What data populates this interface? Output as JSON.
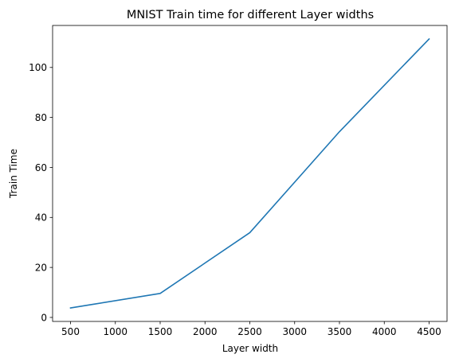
{
  "chart_data": {
    "type": "line",
    "title": "MNIST Train time for different Layer widths",
    "xlabel": "Layer width",
    "ylabel": "Train Time",
    "x": [
      500,
      1500,
      2500,
      3500,
      4500
    ],
    "series": [
      {
        "values": [
          3.8,
          9.6,
          33.9,
          74.3,
          111.4
        ],
        "color": "#1f77b4"
      }
    ],
    "xticks": [
      500,
      1000,
      1500,
      2000,
      2500,
      3000,
      3500,
      4000,
      4500
    ],
    "yticks": [
      0,
      20,
      40,
      60,
      80,
      100
    ],
    "xlim": [
      300,
      4700
    ],
    "ylim": [
      -1.6,
      116.8
    ],
    "grid": false
  }
}
